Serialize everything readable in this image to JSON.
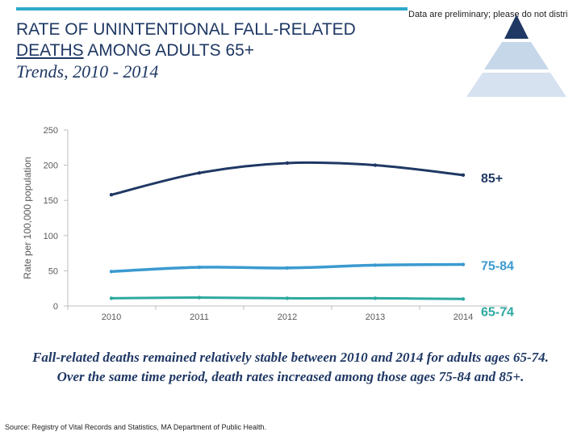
{
  "header": {
    "disclaimer": "Data are preliminary; please do not distri",
    "title_line1": "RATE OF UNINTENTIONAL FALL-RELATED",
    "title_line2_underlined": "DEATHS",
    "title_line2_rest": " AMONG ADULTS 65+",
    "subtitle": "Trends, 2010 - 2014"
  },
  "colors": {
    "accent_rule": "#2ea9cc",
    "title": "#1f3864",
    "series_85_plus": "#1f3864",
    "series_75_84": "#3b9ad0",
    "series_65_74": "#2ea9a0",
    "logo_top": "#1f3864",
    "logo_mid": "#c6d7ea",
    "logo_bottom": "#d6e2ef"
  },
  "chart_data": {
    "type": "line",
    "x": [
      "2010",
      "2011",
      "2012",
      "2013",
      "2014"
    ],
    "ylabel": "Rate per 100,000 population",
    "ylim": [
      0,
      250
    ],
    "yticks": [
      0,
      50,
      100,
      150,
      200,
      250
    ],
    "grid": false,
    "series": [
      {
        "name": "85+",
        "values": [
          158,
          189,
          203,
          200,
          186
        ]
      },
      {
        "name": "75-84",
        "values": [
          49,
          55,
          54,
          58,
          59
        ]
      },
      {
        "name": "65-74",
        "values": [
          11,
          12,
          11,
          11,
          10
        ]
      }
    ]
  },
  "caption": "Fall-related deaths remained relatively stable between 2010 and 2014 for adults ages 65-74.  Over the same time period, death rates increased among those ages 75-84 and 85+.",
  "source": "Source: Registry of Vital Records and Statistics, MA Department of Public Health."
}
